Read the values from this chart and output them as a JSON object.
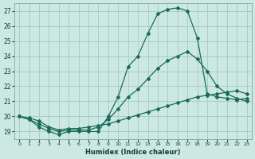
{
  "xlabel": "Humidex (Indice chaleur)",
  "background_color": "#cce8e2",
  "grid_color": "#aaccC6",
  "line_color": "#1a6b5a",
  "xlim": [
    -0.5,
    23.5
  ],
  "ylim": [
    18.5,
    27.5
  ],
  "xticks": [
    0,
    1,
    2,
    3,
    4,
    5,
    6,
    7,
    8,
    9,
    10,
    11,
    12,
    13,
    14,
    15,
    16,
    17,
    18,
    19,
    20,
    21,
    22,
    23
  ],
  "yticks": [
    19,
    20,
    21,
    22,
    23,
    24,
    25,
    26,
    27
  ],
  "line1_x": [
    0,
    1,
    2,
    3,
    4,
    5,
    6,
    7,
    8,
    9,
    10,
    11,
    12,
    13,
    14,
    15,
    16,
    17,
    18,
    19,
    20,
    21,
    22,
    23
  ],
  "line1_y": [
    20.0,
    19.8,
    19.3,
    19.0,
    18.8,
    19.0,
    19.0,
    19.0,
    19.0,
    20.0,
    21.3,
    23.3,
    24.0,
    25.5,
    26.8,
    27.1,
    27.2,
    27.0,
    25.2,
    21.5,
    21.3,
    21.2,
    21.1,
    21.2
  ],
  "line2_x": [
    0,
    1,
    2,
    3,
    4,
    5,
    6,
    7,
    8,
    9,
    10,
    11,
    12,
    13,
    14,
    15,
    16,
    17,
    18,
    19,
    20,
    21,
    22,
    23
  ],
  "line2_y": [
    20.0,
    19.8,
    19.5,
    19.2,
    19.0,
    19.1,
    19.1,
    19.1,
    19.3,
    19.8,
    20.5,
    21.3,
    21.8,
    22.5,
    23.2,
    23.7,
    24.0,
    24.3,
    23.8,
    23.0,
    22.0,
    21.5,
    21.2,
    21.0
  ],
  "line3_x": [
    0,
    1,
    2,
    3,
    4,
    5,
    6,
    7,
    8,
    9,
    10,
    11,
    12,
    13,
    14,
    15,
    16,
    17,
    18,
    19,
    20,
    21,
    22,
    23
  ],
  "line3_y": [
    20.0,
    19.9,
    19.7,
    19.3,
    19.1,
    19.2,
    19.2,
    19.3,
    19.4,
    19.5,
    19.7,
    19.9,
    20.1,
    20.3,
    20.5,
    20.7,
    20.9,
    21.1,
    21.3,
    21.4,
    21.5,
    21.6,
    21.7,
    21.5
  ]
}
